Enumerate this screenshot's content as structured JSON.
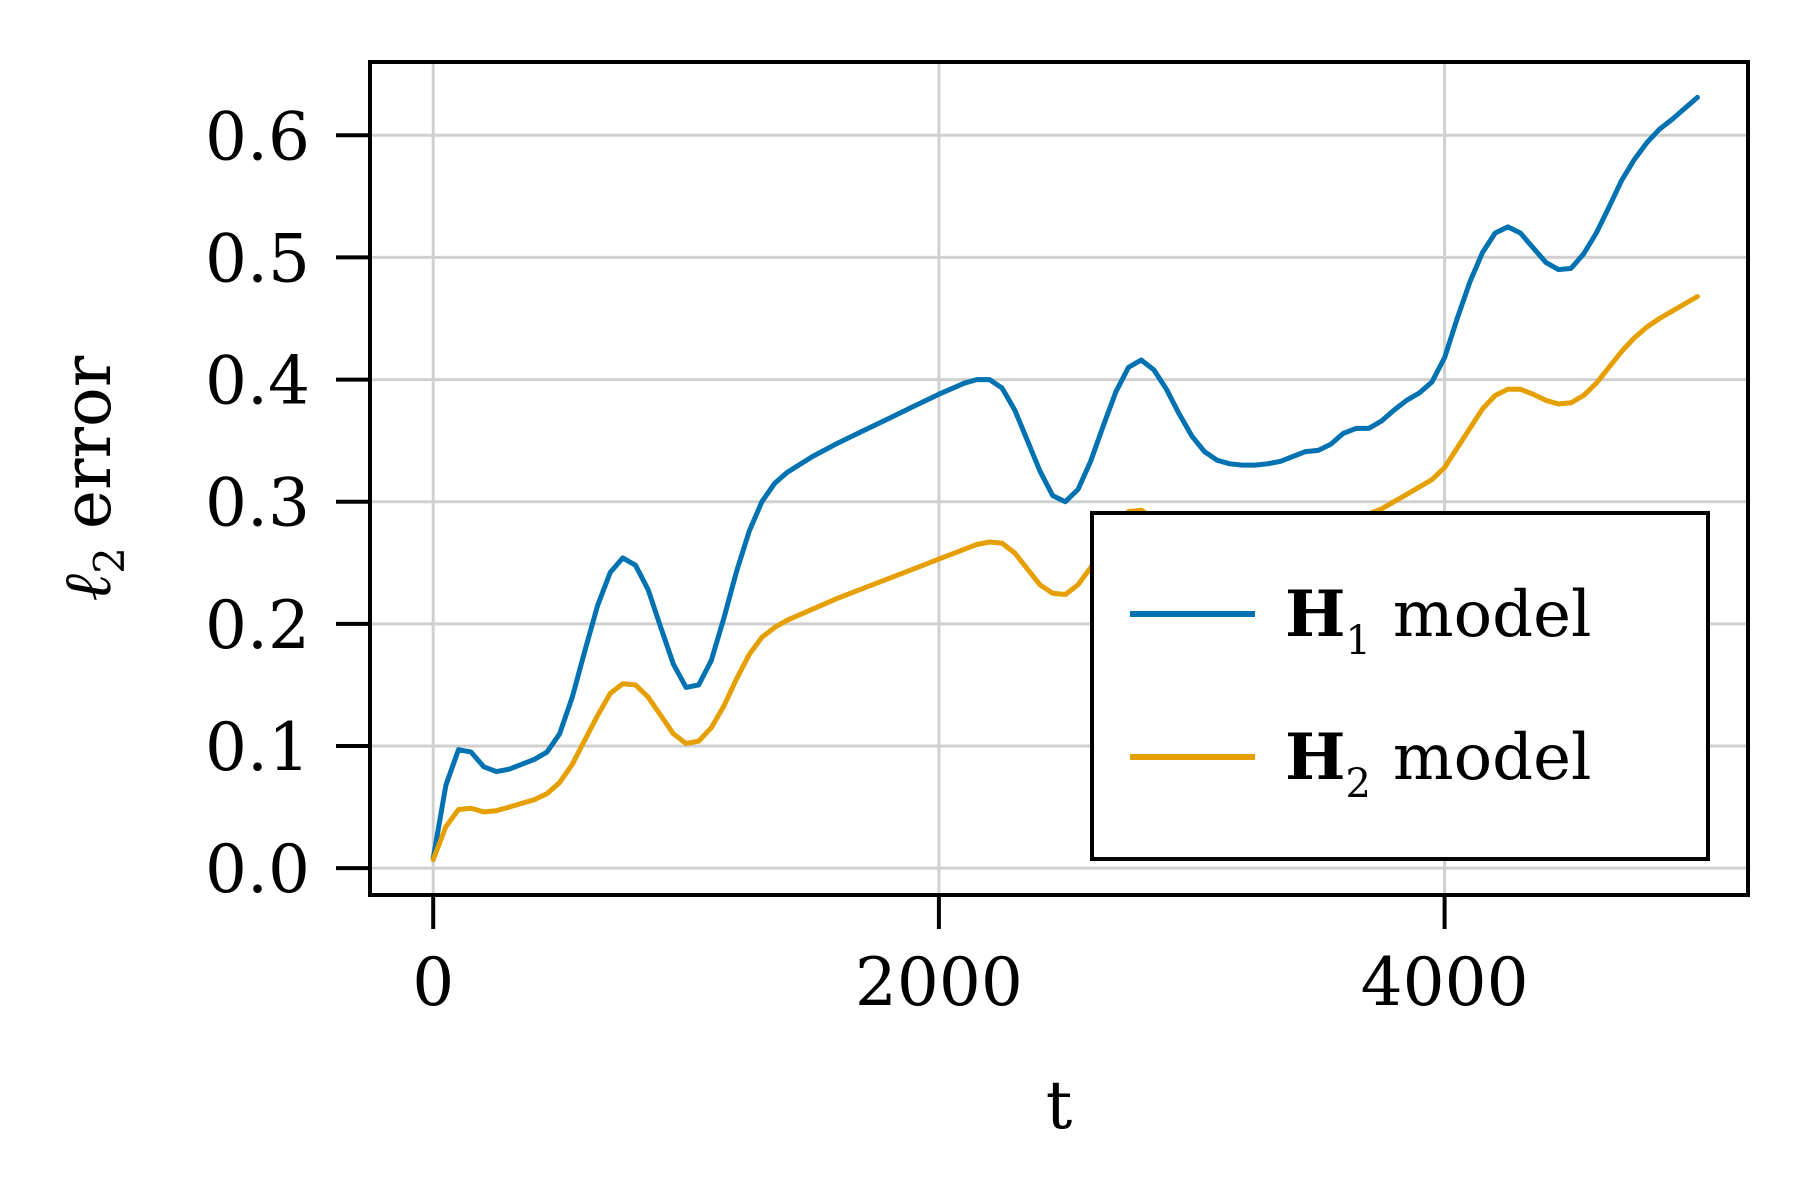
{
  "chart_data": {
    "type": "line",
    "title": "",
    "xlabel": "t",
    "ylabel_symbol": "ℓ",
    "ylabel_subscript": "2",
    "ylabel_text": "error",
    "xlim": [
      -250,
      5200
    ],
    "ylim": [
      -0.022,
      0.66
    ],
    "xticks": [
      0,
      2000,
      4000
    ],
    "xtick_labels": [
      "0",
      "2000",
      "4000"
    ],
    "yticks": [
      0.0,
      0.1,
      0.2,
      0.3,
      0.4,
      0.5,
      0.6
    ],
    "ytick_labels": [
      "0.0",
      "0.1",
      "0.2",
      "0.3",
      "0.4",
      "0.5",
      "0.6"
    ],
    "grid": true,
    "legend_position": "lower-right",
    "series": [
      {
        "name": "H",
        "name_subscript": "1",
        "name_suffix": "model",
        "color": "#0072b2",
        "x": [
          0,
          50,
          100,
          150,
          200,
          250,
          300,
          350,
          400,
          450,
          500,
          550,
          600,
          650,
          700,
          750,
          800,
          850,
          900,
          950,
          1000,
          1050,
          1100,
          1150,
          1200,
          1250,
          1300,
          1350,
          1400,
          1500,
          1600,
          1700,
          1800,
          1900,
          2000,
          2100,
          2150,
          2200,
          2250,
          2300,
          2350,
          2400,
          2450,
          2500,
          2550,
          2600,
          2650,
          2700,
          2750,
          2800,
          2850,
          2900,
          2950,
          3000,
          3050,
          3100,
          3150,
          3200,
          3250,
          3300,
          3350,
          3400,
          3450,
          3500,
          3550,
          3600,
          3650,
          3700,
          3750,
          3800,
          3850,
          3900,
          3950,
          4000,
          4050,
          4100,
          4150,
          4200,
          4250,
          4300,
          4350,
          4400,
          4450,
          4500,
          4550,
          4600,
          4650,
          4700,
          4750,
          4800,
          4850,
          4900,
          5000
        ],
        "y": [
          0.008,
          0.068,
          0.097,
          0.095,
          0.083,
          0.079,
          0.081,
          0.085,
          0.089,
          0.095,
          0.11,
          0.14,
          0.178,
          0.215,
          0.242,
          0.254,
          0.248,
          0.228,
          0.197,
          0.167,
          0.148,
          0.15,
          0.17,
          0.205,
          0.243,
          0.276,
          0.3,
          0.315,
          0.324,
          0.337,
          0.348,
          0.358,
          0.368,
          0.378,
          0.388,
          0.397,
          0.4,
          0.4,
          0.393,
          0.375,
          0.35,
          0.325,
          0.305,
          0.3,
          0.31,
          0.333,
          0.362,
          0.39,
          0.41,
          0.416,
          0.408,
          0.392,
          0.372,
          0.354,
          0.341,
          0.334,
          0.331,
          0.33,
          0.33,
          0.331,
          0.333,
          0.337,
          0.341,
          0.342,
          0.347,
          0.356,
          0.36,
          0.36,
          0.366,
          0.375,
          0.383,
          0.389,
          0.398,
          0.418,
          0.45,
          0.48,
          0.504,
          0.52,
          0.525,
          0.52,
          0.508,
          0.496,
          0.49,
          0.491,
          0.503,
          0.52,
          0.541,
          0.563,
          0.58,
          0.594,
          0.605,
          0.613,
          0.631
        ]
      },
      {
        "name": "H",
        "name_subscript": "2",
        "name_suffix": "model",
        "color": "#e69f00",
        "x": [
          0,
          50,
          100,
          150,
          200,
          250,
          300,
          350,
          400,
          450,
          500,
          550,
          600,
          650,
          700,
          750,
          800,
          850,
          900,
          950,
          1000,
          1050,
          1100,
          1150,
          1200,
          1250,
          1300,
          1350,
          1400,
          1500,
          1600,
          1700,
          1800,
          1900,
          2000,
          2100,
          2150,
          2200,
          2250,
          2300,
          2350,
          2400,
          2450,
          2500,
          2550,
          2600,
          2650,
          2700,
          2750,
          2800,
          2850,
          2900,
          2950,
          3000,
          3100,
          3200,
          3300,
          3400,
          3500,
          3600,
          3700,
          3750,
          3800,
          3850,
          3900,
          3950,
          4000,
          4050,
          4100,
          4150,
          4200,
          4250,
          4300,
          4350,
          4400,
          4450,
          4500,
          4550,
          4600,
          4650,
          4700,
          4750,
          4800,
          4850,
          4900,
          5000
        ],
        "y": [
          0.007,
          0.034,
          0.048,
          0.049,
          0.046,
          0.047,
          0.05,
          0.053,
          0.056,
          0.061,
          0.07,
          0.085,
          0.105,
          0.125,
          0.143,
          0.151,
          0.15,
          0.14,
          0.125,
          0.11,
          0.102,
          0.104,
          0.115,
          0.133,
          0.155,
          0.175,
          0.189,
          0.197,
          0.203,
          0.212,
          0.221,
          0.229,
          0.237,
          0.245,
          0.253,
          0.261,
          0.265,
          0.267,
          0.266,
          0.258,
          0.245,
          0.232,
          0.225,
          0.224,
          0.232,
          0.246,
          0.264,
          0.282,
          0.292,
          0.293,
          0.287,
          0.281,
          0.277,
          0.276,
          0.276,
          0.277,
          0.279,
          0.281,
          0.283,
          0.286,
          0.29,
          0.294,
          0.3,
          0.306,
          0.312,
          0.318,
          0.328,
          0.344,
          0.36,
          0.376,
          0.387,
          0.392,
          0.392,
          0.388,
          0.383,
          0.38,
          0.381,
          0.387,
          0.397,
          0.41,
          0.423,
          0.434,
          0.443,
          0.45,
          0.456,
          0.468
        ]
      }
    ]
  }
}
